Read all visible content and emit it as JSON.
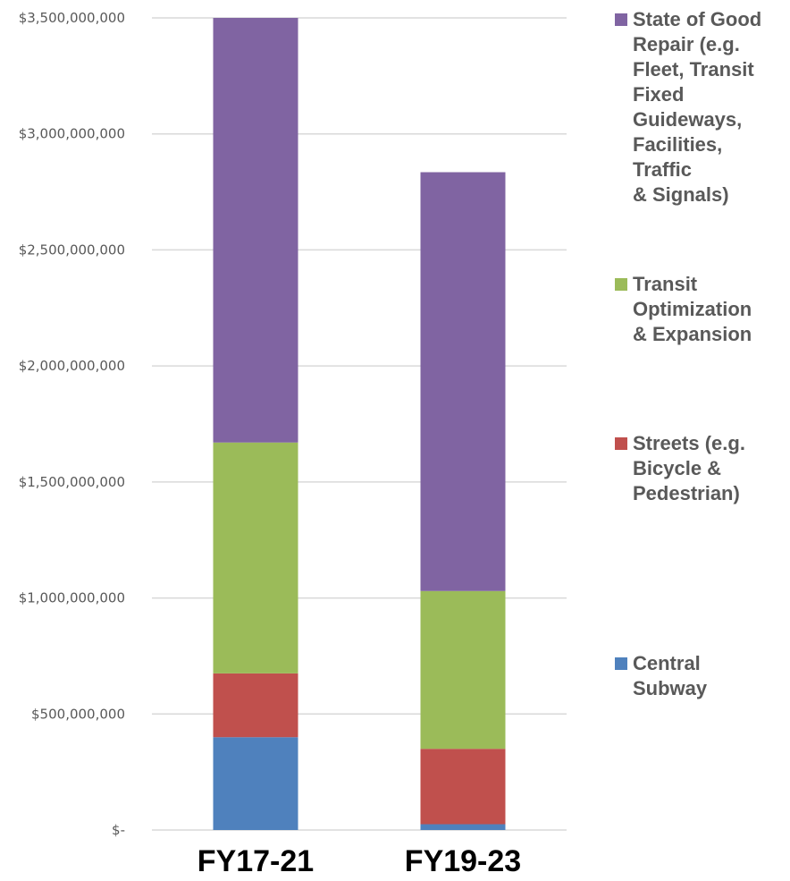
{
  "chart_data": {
    "type": "bar",
    "stacked": true,
    "categories": [
      "FY17-21",
      "FY19-23"
    ],
    "series": [
      {
        "name": "Central Subway",
        "color": "#4f81bd",
        "values": [
          400000000,
          25000000
        ]
      },
      {
        "name": "Streets (e.g. Bicycle & Pedestrian)",
        "color": "#c0504d",
        "values": [
          275000000,
          325000000
        ]
      },
      {
        "name": "Transit Optimization & Expansion",
        "color": "#9bbb59",
        "values": [
          995000000,
          680000000
        ]
      },
      {
        "name": "State of Good Repair (e.g. Fleet, Transit Fixed Guideways, Facilities, Traffic & Signals)",
        "color": "#8064a2",
        "values": [
          1830000000,
          1805000000
        ]
      }
    ],
    "ylim": [
      0,
      3500000000
    ],
    "yticks": [
      {
        "value": 0,
        "label": "$-"
      },
      {
        "value": 500000000,
        "label": "$500,000,000"
      },
      {
        "value": 1000000000,
        "label": "$1,000,000,000"
      },
      {
        "value": 1500000000,
        "label": "$1,500,000,000"
      },
      {
        "value": 2000000000,
        "label": "$2,000,000,000"
      },
      {
        "value": 2500000000,
        "label": "$2,500,000,000"
      },
      {
        "value": 3000000000,
        "label": "$3,000,000,000"
      },
      {
        "value": 3500000000,
        "label": "$3,500,000,000"
      }
    ],
    "title": "",
    "xlabel": "",
    "ylabel": "",
    "grid": true,
    "gridline_color": "#d9d9d9",
    "legend_position": "right",
    "legend": [
      {
        "lines": [
          "State of Good",
          "Repair (e.g.",
          "Fleet, Transit",
          "Fixed",
          "Guideways,",
          "Facilities,",
          "Traffic",
          "& Signals)"
        ],
        "color": "#8064a2"
      },
      {
        "lines": [
          "Transit",
          "Optimization",
          "& Expansion"
        ],
        "color": "#9bbb59"
      },
      {
        "lines": [
          "Streets (e.g.",
          "Bicycle &",
          "Pedestrian)"
        ],
        "color": "#c0504d"
      },
      {
        "lines": [
          "Central",
          "Subway"
        ],
        "color": "#4f81bd"
      }
    ]
  }
}
